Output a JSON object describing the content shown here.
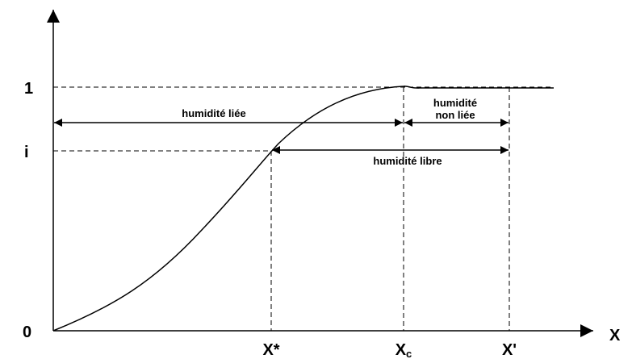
{
  "axes": {
    "x_label": "X",
    "y_labels": {
      "one": "1",
      "i": "i",
      "zero": "0"
    },
    "x_labels": {
      "x_star": "X*",
      "x_c": {
        "base": "X",
        "sub": "c"
      },
      "x_prime": "X'"
    }
  },
  "annotations": {
    "bound": "humidité liée",
    "unbound": [
      "humidité",
      "non liée"
    ],
    "free": "humidité libre"
  }
}
